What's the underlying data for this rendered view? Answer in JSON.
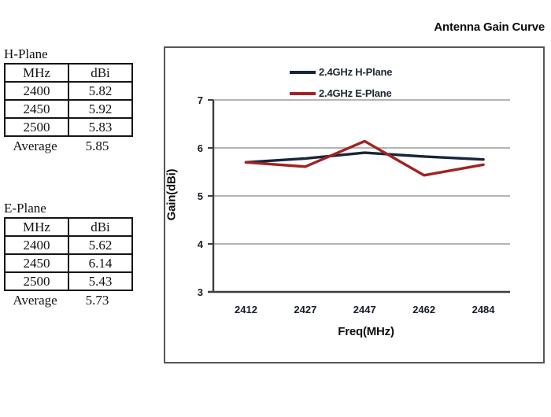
{
  "page": {
    "title": "Antenna Gain Curve"
  },
  "tables": [
    {
      "title": "H-Plane",
      "headers": [
        "MHz",
        "dBi"
      ],
      "rows": [
        [
          "2400",
          "5.82"
        ],
        [
          "2450",
          "5.92"
        ],
        [
          "2500",
          "5.83"
        ]
      ],
      "average_label": "Average",
      "average_value": "5.85"
    },
    {
      "title": "E-Plane",
      "headers": [
        "MHz",
        "dBi"
      ],
      "rows": [
        [
          "2400",
          "5.62"
        ],
        [
          "2450",
          "6.14"
        ],
        [
          "2500",
          "5.43"
        ]
      ],
      "average_label": "Average",
      "average_value": "5.73"
    }
  ],
  "chart_data": {
    "type": "line",
    "x": [
      2412,
      2427,
      2447,
      2462,
      2484
    ],
    "series": [
      {
        "name": "2.4GHz H-Plane",
        "color": "#16263a",
        "values": [
          5.7,
          5.78,
          5.9,
          5.82,
          5.76
        ]
      },
      {
        "name": "2.4GHz E-Plane",
        "color": "#a22222",
        "values": [
          5.7,
          5.61,
          6.14,
          5.43,
          5.65
        ]
      }
    ],
    "xlabel": "Freq(MHz)",
    "ylabel": "Gain(dBi)",
    "ylim": [
      3,
      7
    ],
    "yticks": [
      3,
      4,
      5,
      6,
      7
    ],
    "grid": true,
    "legend_position": "top"
  },
  "colors": {
    "grid": "#9b9b9b",
    "axis": "#3d3d3d",
    "chart_border": "#565656"
  }
}
